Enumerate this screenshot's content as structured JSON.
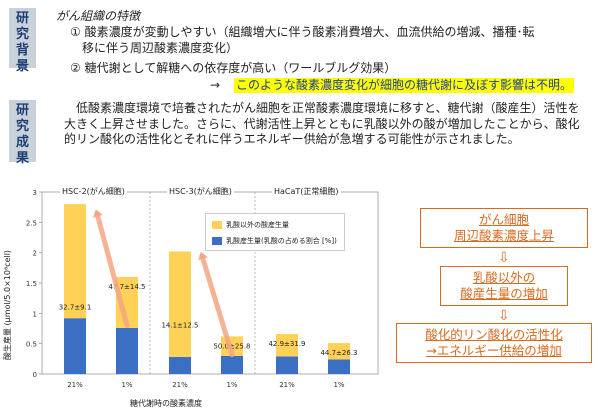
{
  "background": {
    "tag": [
      "研",
      "究",
      "背",
      "景"
    ],
    "title": "がん組織の特徴",
    "items": [
      "①  酸素濃度が変動しやすい（組織増大に伴う酸素消費増大、血流供給の増減、播種･転",
      "移に伴う周辺酸素濃度変化）",
      "②  糖代謝として解糖への依存度が高い（ワールブルグ効果）"
    ],
    "arrow": "→",
    "highlight": "このような酸素濃度変化が細胞の糖代謝に及ぼす影響は不明。"
  },
  "results": {
    "tag": [
      "研",
      "究",
      "成",
      "果"
    ],
    "text": "低酸素濃度環境で培養されたがん細胞を正常酸素濃度環境に移すと、糖代謝（酸産生）活性を大きく上昇させました。さらに、代謝活性上昇とともに乳酸以外の酸が増加したことから、酸化的リン酸化の活性化とそれに伴うエネルギー供給が急増する可能性が示されました。"
  },
  "chart_data": {
    "type": "bar",
    "stacked": true,
    "groups": [
      "HSC-2(がん細胞)",
      "HSC-3(がん細胞)",
      "HaCaT(正常細胞)"
    ],
    "categories": [
      "21%",
      "1%",
      "21%",
      "1%",
      "21%",
      "1%"
    ],
    "series": [
      {
        "name": "乳酸産生量(乳酸の占める割合 [%])",
        "color": "#3a6fc4",
        "values": [
          0.92,
          0.76,
          0.28,
          0.3,
          0.29,
          0.24
        ]
      },
      {
        "name": "乳酸以外の酸産生量",
        "color": "#ffd257",
        "values": [
          1.88,
          0.84,
          1.74,
          0.32,
          0.37,
          0.27
        ]
      }
    ],
    "data_labels": [
      "32.7±9.1",
      "47.7±14.5",
      "14.1±12.5",
      "50.0±25.8",
      "42.9±31.9",
      "44.7±26.3"
    ],
    "ylabel": "酸生産量 (μmol/5.0×10⁶cell)",
    "xlabel": "糖代謝時の酸素濃度",
    "ylim": [
      0,
      3
    ],
    "yticks": [
      "0",
      "0.5",
      "1",
      "1.5",
      "2",
      "2.5",
      "3"
    ],
    "grid": false,
    "legend": "top-right"
  },
  "flow": {
    "box1": [
      "がん細胞",
      "周辺酸素濃度上昇"
    ],
    "box2": [
      "乳酸以外の",
      "酸産生量の増加"
    ],
    "box3": [
      "酸化的リン酸化の活性化",
      "→エネルギー供給の増加"
    ],
    "arrow": "⇩"
  }
}
